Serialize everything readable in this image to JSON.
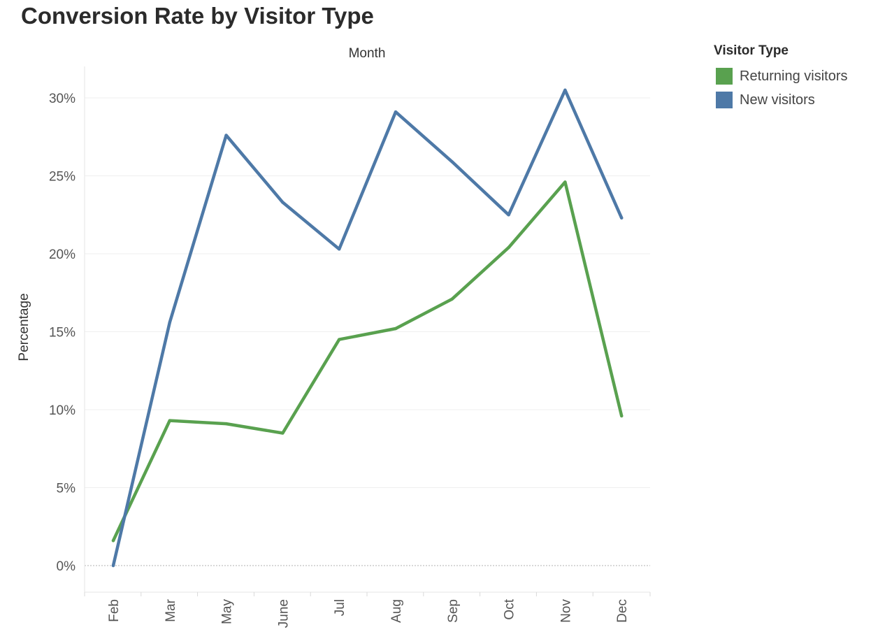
{
  "chart_data": {
    "type": "line",
    "title": "Conversion Rate by Visitor Type",
    "xlabel": "Month",
    "ylabel": "Percentage",
    "categories": [
      "Feb",
      "Mar",
      "May",
      "June",
      "Jul",
      "Aug",
      "Sep",
      "Oct",
      "Nov",
      "Dec"
    ],
    "series": [
      {
        "name": "Returning visitors",
        "color": "#59a14f",
        "values": [
          1.6,
          9.3,
          9.1,
          8.5,
          14.5,
          15.2,
          17.1,
          20.4,
          24.6,
          9.6
        ]
      },
      {
        "name": "New visitors",
        "color": "#4e79a7",
        "values": [
          0.0,
          15.6,
          27.6,
          23.3,
          20.3,
          29.1,
          25.9,
          22.5,
          30.5,
          22.3
        ]
      }
    ],
    "yticks": [
      "0%",
      "5%",
      "10%",
      "15%",
      "20%",
      "25%",
      "30%"
    ],
    "ytick_values": [
      0,
      5,
      10,
      15,
      20,
      25,
      30
    ],
    "ylim": [
      0,
      30
    ],
    "legend": {
      "title": "Visitor Type",
      "position": "right"
    },
    "grid": true
  }
}
